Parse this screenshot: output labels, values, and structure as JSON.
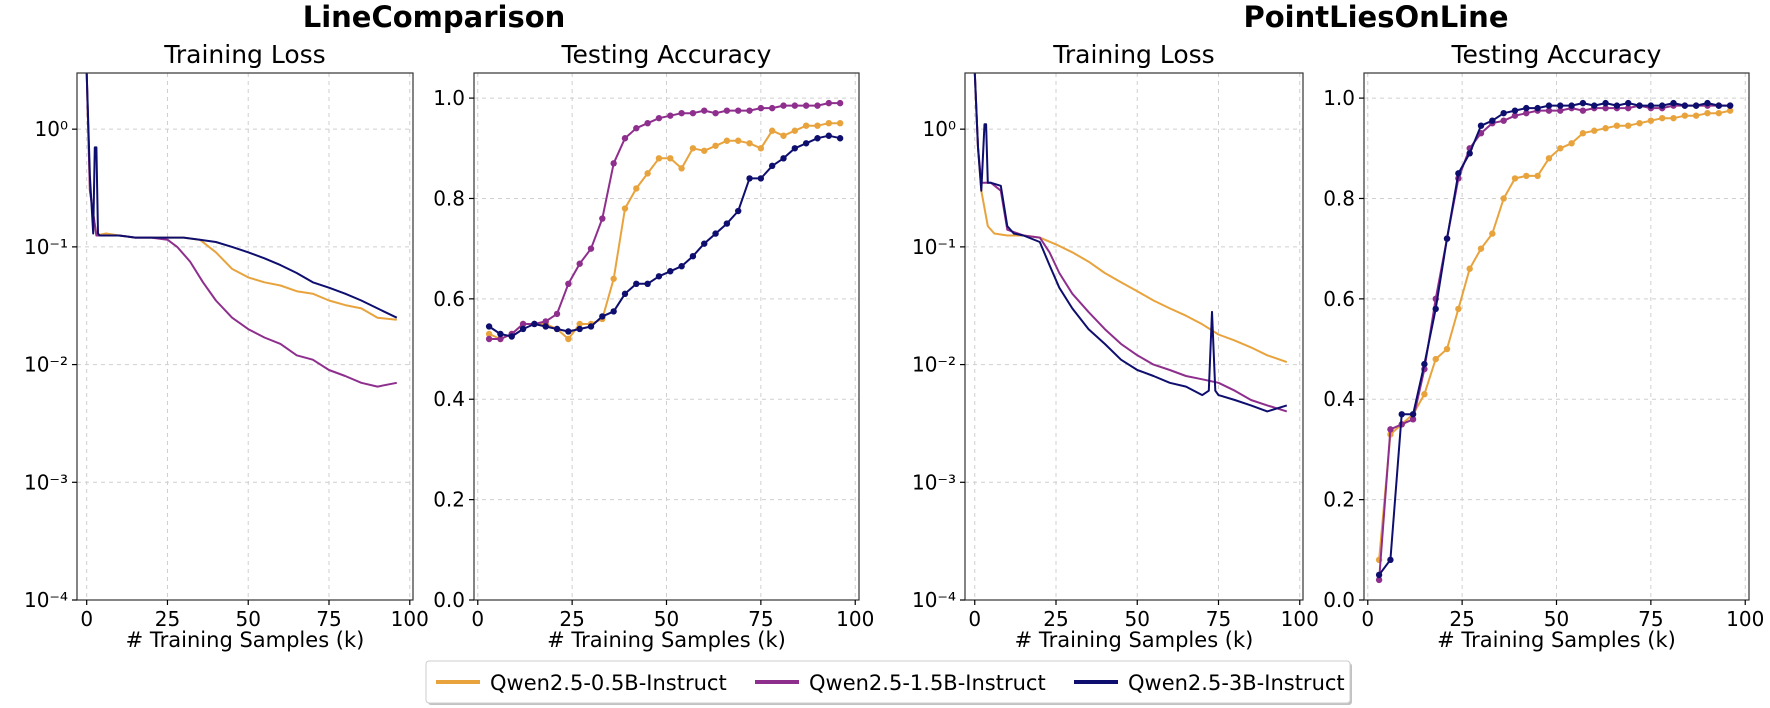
{
  "group_titles": [
    "LineComparison",
    "PointLiesOnLine"
  ],
  "legend": {
    "entries": [
      {
        "label": "Qwen2.5-0.5B-Instruct",
        "color": "#E8A33D"
      },
      {
        "label": "Qwen2.5-1.5B-Instruct",
        "color": "#8E2F8E"
      },
      {
        "label": "Qwen2.5-3B-Instruct",
        "color": "#0E0E6E"
      }
    ]
  },
  "chart_data": [
    {
      "type": "line",
      "group": "LineComparison",
      "title": "Training Loss",
      "xlabel": "# Training Samples (k)",
      "ylabel": "",
      "yscale": "log",
      "xlim": [
        -3,
        101
      ],
      "ylim": [
        0.0001,
        3
      ],
      "xticks": [
        0,
        25,
        50,
        75,
        100
      ],
      "yticks": [
        0.0001,
        0.001,
        0.01,
        0.1,
        1
      ],
      "ytick_labels": [
        "10⁻⁴",
        "10⁻³",
        "10⁻²",
        "10⁻¹",
        "10⁰"
      ],
      "grid": true,
      "series": [
        {
          "name": "Qwen2.5-0.5B-Instruct",
          "x": [
            0,
            1,
            3,
            6,
            10,
            15,
            20,
            25,
            30,
            35,
            40,
            45,
            50,
            55,
            60,
            65,
            70,
            75,
            80,
            85,
            90,
            96
          ],
          "y": [
            3,
            0.3,
            0.125,
            0.13,
            0.125,
            0.12,
            0.12,
            0.12,
            0.12,
            0.115,
            0.09,
            0.065,
            0.055,
            0.05,
            0.047,
            0.042,
            0.04,
            0.035,
            0.032,
            0.03,
            0.025,
            0.024
          ]
        },
        {
          "name": "Qwen2.5-1.5B-Instruct",
          "x": [
            0,
            1,
            3,
            6,
            10,
            15,
            20,
            25,
            28,
            32,
            36,
            40,
            45,
            50,
            55,
            60,
            65,
            70,
            75,
            80,
            85,
            90,
            96
          ],
          "y": [
            3,
            0.3,
            0.125,
            0.125,
            0.125,
            0.12,
            0.12,
            0.115,
            0.1,
            0.075,
            0.05,
            0.035,
            0.025,
            0.02,
            0.017,
            0.015,
            0.012,
            0.011,
            0.009,
            0.008,
            0.007,
            0.0065,
            0.007
          ]
        },
        {
          "name": "Qwen2.5-3B-Instruct",
          "x": [
            0,
            1,
            2,
            2.5,
            3,
            3.5,
            4,
            6,
            10,
            15,
            20,
            25,
            30,
            35,
            40,
            45,
            50,
            55,
            60,
            65,
            70,
            75,
            80,
            85,
            90,
            96
          ],
          "y": [
            3,
            0.4,
            0.13,
            0.7,
            0.7,
            0.13,
            0.125,
            0.125,
            0.125,
            0.12,
            0.12,
            0.12,
            0.12,
            0.115,
            0.11,
            0.1,
            0.09,
            0.08,
            0.07,
            0.06,
            0.05,
            0.045,
            0.04,
            0.035,
            0.03,
            0.025
          ]
        }
      ]
    },
    {
      "type": "line",
      "group": "LineComparison",
      "title": "Testing Accuracy",
      "xlabel": "# Training Samples (k)",
      "ylabel": "",
      "yscale": "linear",
      "xlim": [
        -1,
        101
      ],
      "ylim": [
        0,
        1.05
      ],
      "xticks": [
        0,
        25,
        50,
        75,
        100
      ],
      "yticks": [
        0,
        0.2,
        0.4,
        0.6,
        0.8,
        1.0
      ],
      "ytick_labels": [
        "0.0",
        "0.2",
        "0.4",
        "0.6",
        "0.8",
        "1.0"
      ],
      "grid": true,
      "markers": true,
      "series": [
        {
          "name": "Qwen2.5-0.5B-Instruct",
          "x": [
            3,
            6,
            9,
            12,
            15,
            18,
            21,
            24,
            27,
            30,
            33,
            36,
            39,
            42,
            45,
            48,
            51,
            54,
            57,
            60,
            63,
            66,
            69,
            72,
            75,
            78,
            81,
            84,
            87,
            90,
            93,
            96
          ],
          "y": [
            0.53,
            0.52,
            0.53,
            0.55,
            0.55,
            0.55,
            0.54,
            0.52,
            0.55,
            0.55,
            0.56,
            0.64,
            0.78,
            0.82,
            0.85,
            0.88,
            0.88,
            0.86,
            0.9,
            0.895,
            0.905,
            0.915,
            0.915,
            0.91,
            0.9,
            0.935,
            0.925,
            0.935,
            0.945,
            0.945,
            0.95,
            0.95
          ]
        },
        {
          "name": "Qwen2.5-1.5B-Instruct",
          "x": [
            3,
            6,
            9,
            12,
            15,
            18,
            21,
            24,
            27,
            30,
            33,
            36,
            39,
            42,
            45,
            48,
            51,
            54,
            57,
            60,
            63,
            66,
            69,
            72,
            75,
            78,
            81,
            84,
            87,
            90,
            93,
            96
          ],
          "y": [
            0.52,
            0.52,
            0.53,
            0.55,
            0.55,
            0.555,
            0.57,
            0.63,
            0.67,
            0.7,
            0.76,
            0.87,
            0.92,
            0.94,
            0.95,
            0.96,
            0.965,
            0.97,
            0.97,
            0.975,
            0.97,
            0.975,
            0.975,
            0.975,
            0.98,
            0.98,
            0.985,
            0.985,
            0.985,
            0.985,
            0.99,
            0.99
          ]
        },
        {
          "name": "Qwen2.5-3B-Instruct",
          "x": [
            3,
            6,
            9,
            12,
            15,
            18,
            21,
            24,
            27,
            30,
            33,
            36,
            39,
            42,
            45,
            48,
            51,
            54,
            57,
            60,
            63,
            66,
            69,
            72,
            75,
            78,
            81,
            84,
            87,
            90,
            93,
            96
          ],
          "y": [
            0.545,
            0.53,
            0.525,
            0.54,
            0.55,
            0.545,
            0.54,
            0.535,
            0.54,
            0.545,
            0.565,
            0.575,
            0.61,
            0.63,
            0.63,
            0.645,
            0.655,
            0.665,
            0.685,
            0.71,
            0.73,
            0.75,
            0.775,
            0.84,
            0.84,
            0.865,
            0.88,
            0.9,
            0.91,
            0.92,
            0.925,
            0.92
          ]
        }
      ]
    },
    {
      "type": "line",
      "group": "PointLiesOnLine",
      "title": "Training Loss",
      "xlabel": "# Training Samples (k)",
      "ylabel": "",
      "yscale": "log",
      "xlim": [
        -3,
        101
      ],
      "ylim": [
        0.0001,
        3
      ],
      "xticks": [
        0,
        25,
        50,
        75,
        100
      ],
      "yticks": [
        0.0001,
        0.001,
        0.01,
        0.1,
        1
      ],
      "ytick_labels": [
        "10⁻⁴",
        "10⁻³",
        "10⁻²",
        "10⁻¹",
        "10⁰"
      ],
      "grid": true,
      "series": [
        {
          "name": "Qwen2.5-0.5B-Instruct",
          "x": [
            0,
            1,
            2,
            4,
            6,
            10,
            15,
            20,
            25,
            30,
            35,
            40,
            45,
            50,
            55,
            60,
            65,
            70,
            75,
            80,
            85,
            90,
            96
          ],
          "y": [
            3,
            0.7,
            0.3,
            0.15,
            0.13,
            0.125,
            0.125,
            0.12,
            0.105,
            0.09,
            0.075,
            0.06,
            0.05,
            0.042,
            0.035,
            0.03,
            0.026,
            0.022,
            0.018,
            0.016,
            0.014,
            0.012,
            0.0105
          ]
        },
        {
          "name": "Qwen2.5-1.5B-Instruct",
          "x": [
            0,
            1,
            2,
            5,
            8,
            10,
            15,
            20,
            23,
            26,
            30,
            35,
            40,
            45,
            50,
            55,
            60,
            65,
            70,
            75,
            80,
            85,
            90,
            96
          ],
          "y": [
            3,
            0.7,
            0.35,
            0.35,
            0.3,
            0.14,
            0.125,
            0.12,
            0.09,
            0.06,
            0.04,
            0.028,
            0.02,
            0.015,
            0.012,
            0.01,
            0.009,
            0.008,
            0.0075,
            0.007,
            0.006,
            0.005,
            0.0045,
            0.004
          ]
        },
        {
          "name": "Qwen2.5-3B-Instruct",
          "x": [
            0,
            1,
            2,
            3,
            3.5,
            4,
            5,
            8,
            10,
            12,
            15,
            20,
            23,
            26,
            30,
            35,
            40,
            45,
            50,
            55,
            60,
            65,
            70,
            72,
            73,
            74,
            75,
            80,
            85,
            90,
            96
          ],
          "y": [
            3,
            0.7,
            0.3,
            1.1,
            1.1,
            0.35,
            0.35,
            0.33,
            0.15,
            0.13,
            0.125,
            0.11,
            0.07,
            0.045,
            0.03,
            0.02,
            0.015,
            0.011,
            0.009,
            0.008,
            0.007,
            0.0065,
            0.0055,
            0.006,
            0.028,
            0.006,
            0.0055,
            0.005,
            0.0045,
            0.004,
            0.0045
          ]
        }
      ]
    },
    {
      "type": "line",
      "group": "PointLiesOnLine",
      "title": "Testing Accuracy",
      "xlabel": "# Training Samples (k)",
      "ylabel": "",
      "yscale": "linear",
      "xlim": [
        -1,
        101
      ],
      "ylim": [
        0,
        1.05
      ],
      "xticks": [
        0,
        25,
        50,
        75,
        100
      ],
      "yticks": [
        0,
        0.2,
        0.4,
        0.6,
        0.8,
        1.0
      ],
      "ytick_labels": [
        "0.0",
        "0.2",
        "0.4",
        "0.6",
        "0.8",
        "1.0"
      ],
      "grid": true,
      "markers": true,
      "series": [
        {
          "name": "Qwen2.5-0.5B-Instruct",
          "x": [
            3,
            6,
            9,
            12,
            15,
            18,
            21,
            24,
            27,
            30,
            33,
            36,
            39,
            42,
            45,
            48,
            51,
            54,
            57,
            60,
            63,
            66,
            69,
            72,
            75,
            78,
            81,
            84,
            87,
            90,
            93,
            96
          ],
          "y": [
            0.08,
            0.33,
            0.35,
            0.37,
            0.41,
            0.48,
            0.5,
            0.58,
            0.66,
            0.7,
            0.73,
            0.8,
            0.84,
            0.845,
            0.845,
            0.88,
            0.9,
            0.91,
            0.93,
            0.935,
            0.94,
            0.945,
            0.945,
            0.95,
            0.955,
            0.96,
            0.96,
            0.965,
            0.965,
            0.97,
            0.97,
            0.975
          ]
        },
        {
          "name": "Qwen2.5-1.5B-Instruct",
          "x": [
            3,
            6,
            9,
            12,
            15,
            18,
            21,
            24,
            27,
            30,
            33,
            36,
            39,
            42,
            45,
            48,
            51,
            54,
            57,
            60,
            63,
            66,
            69,
            72,
            75,
            78,
            81,
            84,
            87,
            90,
            93,
            96
          ],
          "y": [
            0.04,
            0.34,
            0.35,
            0.36,
            0.46,
            0.6,
            0.72,
            0.84,
            0.9,
            0.93,
            0.95,
            0.955,
            0.965,
            0.97,
            0.975,
            0.975,
            0.975,
            0.98,
            0.975,
            0.98,
            0.98,
            0.98,
            0.98,
            0.985,
            0.98,
            0.98,
            0.985,
            0.985,
            0.985,
            0.985,
            0.985,
            0.985
          ]
        },
        {
          "name": "Qwen2.5-3B-Instruct",
          "x": [
            3,
            6,
            9,
            12,
            15,
            18,
            21,
            24,
            27,
            30,
            33,
            36,
            39,
            42,
            45,
            48,
            51,
            54,
            57,
            60,
            63,
            66,
            69,
            72,
            75,
            78,
            81,
            84,
            87,
            90,
            93,
            96
          ],
          "y": [
            0.05,
            0.08,
            0.37,
            0.37,
            0.47,
            0.58,
            0.72,
            0.85,
            0.89,
            0.945,
            0.955,
            0.97,
            0.975,
            0.98,
            0.98,
            0.985,
            0.985,
            0.985,
            0.99,
            0.985,
            0.99,
            0.985,
            0.99,
            0.985,
            0.985,
            0.985,
            0.99,
            0.985,
            0.985,
            0.99,
            0.985,
            0.985
          ]
        }
      ]
    }
  ]
}
